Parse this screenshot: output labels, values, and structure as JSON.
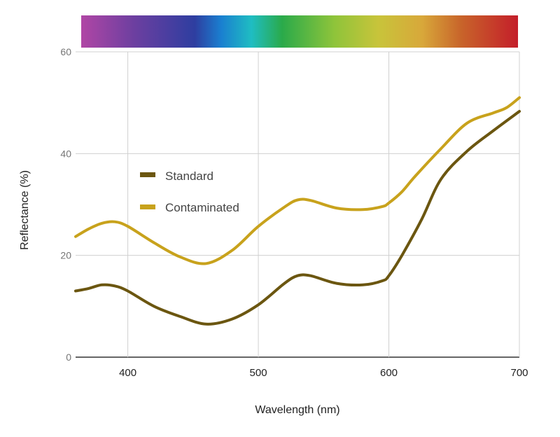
{
  "chart_data": {
    "type": "line",
    "title": "",
    "xlabel": "Wavelength (nm)",
    "ylabel": "Reflectance (%)",
    "xlim": [
      360,
      700
    ],
    "ylim": [
      0,
      60
    ],
    "x_ticks": [
      400,
      500,
      600,
      700
    ],
    "y_ticks": [
      0,
      20,
      40,
      60
    ],
    "grid": true,
    "legend_position": "center-left",
    "spectrum_bar": true,
    "series": [
      {
        "name": "Standard",
        "color": "#6b5610",
        "points": [
          [
            360,
            13.0
          ],
          [
            370,
            13.5
          ],
          [
            380,
            14.2
          ],
          [
            390,
            14.0
          ],
          [
            400,
            13.0
          ],
          [
            420,
            10.0
          ],
          [
            440,
            8.0
          ],
          [
            460,
            6.5
          ],
          [
            480,
            7.5
          ],
          [
            500,
            10.3
          ],
          [
            520,
            14.5
          ],
          [
            530,
            16.0
          ],
          [
            540,
            16.0
          ],
          [
            560,
            14.5
          ],
          [
            580,
            14.2
          ],
          [
            595,
            15.0
          ],
          [
            600,
            16.0
          ],
          [
            610,
            20.0
          ],
          [
            625,
            27.0
          ],
          [
            640,
            35.0
          ],
          [
            660,
            40.5
          ],
          [
            680,
            44.5
          ],
          [
            700,
            48.3
          ]
        ]
      },
      {
        "name": "Contaminated",
        "color": "#c8a21c",
        "points": [
          [
            360,
            23.7
          ],
          [
            370,
            25.2
          ],
          [
            380,
            26.3
          ],
          [
            390,
            26.6
          ],
          [
            400,
            25.7
          ],
          [
            420,
            22.5
          ],
          [
            440,
            19.7
          ],
          [
            460,
            18.4
          ],
          [
            480,
            21.0
          ],
          [
            500,
            25.7
          ],
          [
            520,
            29.5
          ],
          [
            530,
            30.9
          ],
          [
            540,
            30.8
          ],
          [
            560,
            29.3
          ],
          [
            580,
            29.0
          ],
          [
            595,
            29.6
          ],
          [
            600,
            30.3
          ],
          [
            610,
            32.5
          ],
          [
            620,
            35.5
          ],
          [
            640,
            41.0
          ],
          [
            660,
            46.0
          ],
          [
            680,
            48.0
          ],
          [
            690,
            49.0
          ],
          [
            700,
            51.0
          ]
        ]
      }
    ]
  }
}
